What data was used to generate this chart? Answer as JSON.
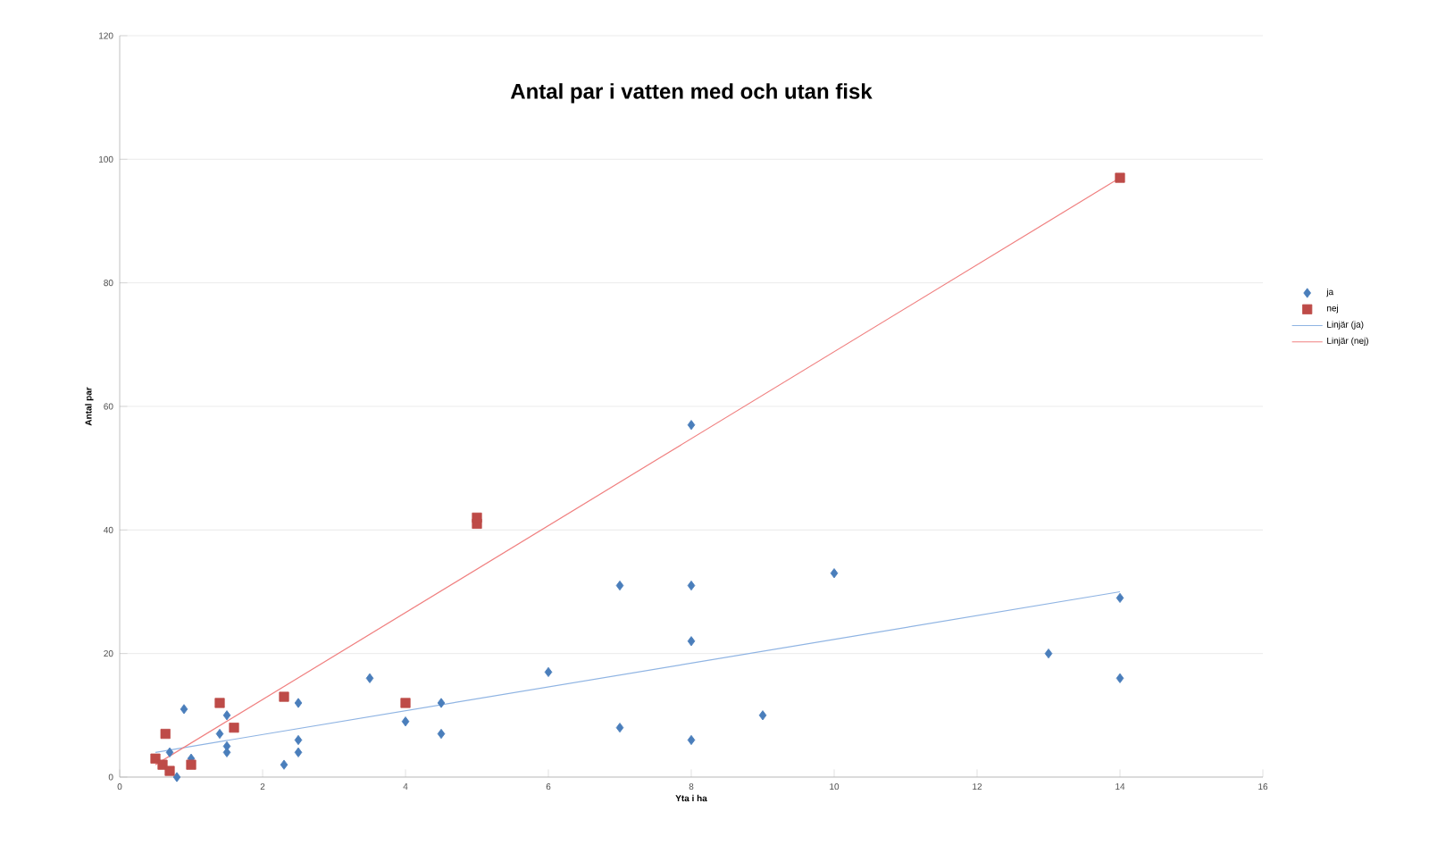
{
  "chart_data": {
    "type": "scatter",
    "title": "Antal par i vatten med och utan fisk",
    "xlabel": "Yta i ha",
    "ylabel": "Antal par",
    "xlim": [
      0,
      16
    ],
    "xticks": [
      0,
      2,
      4,
      6,
      8,
      10,
      12,
      14,
      16
    ],
    "ylim": [
      0,
      120
    ],
    "yticks": [
      0,
      20,
      40,
      60,
      80,
      100,
      120
    ],
    "grid": "y",
    "legend": "right",
    "series": [
      {
        "name": "ja",
        "color": "#4a7ebb",
        "marker": "diamond",
        "x": [
          0.9,
          0.7,
          0.8,
          1,
          1.4,
          1.5,
          1.5,
          1.5,
          2.3,
          2.5,
          2.5,
          2.5,
          3.5,
          4,
          4.5,
          4.5,
          6,
          7,
          7,
          8,
          8,
          8,
          8,
          9,
          10,
          13,
          14,
          14
        ],
        "values": [
          11,
          4,
          0,
          3,
          7,
          10,
          5,
          4,
          2,
          12,
          6,
          4,
          16,
          9,
          12,
          7,
          17,
          31,
          8,
          57,
          31,
          22,
          6,
          10,
          33,
          20,
          29,
          16
        ]
      },
      {
        "name": "nej",
        "color": "#be4b48",
        "marker": "square",
        "x": [
          0.5,
          0.6,
          0.64,
          0.7,
          1,
          1.4,
          1.6,
          2.3,
          4,
          5,
          5,
          14
        ],
        "values": [
          3,
          2,
          7,
          1,
          2,
          12,
          8,
          13,
          12,
          41,
          42,
          97
        ]
      },
      {
        "name": "Linjär (ja)",
        "type": "line",
        "color": "#8fb4e3",
        "marker": "none",
        "line_style": "solid",
        "x": [
          0.5,
          14
        ],
        "values": [
          4,
          30
        ]
      },
      {
        "name": "Linjär (nej)",
        "type": "line",
        "color": "#f08080",
        "marker": "none",
        "line_style": "solid",
        "x": [
          0.5,
          14
        ],
        "values": [
          2,
          97
        ]
      }
    ]
  }
}
